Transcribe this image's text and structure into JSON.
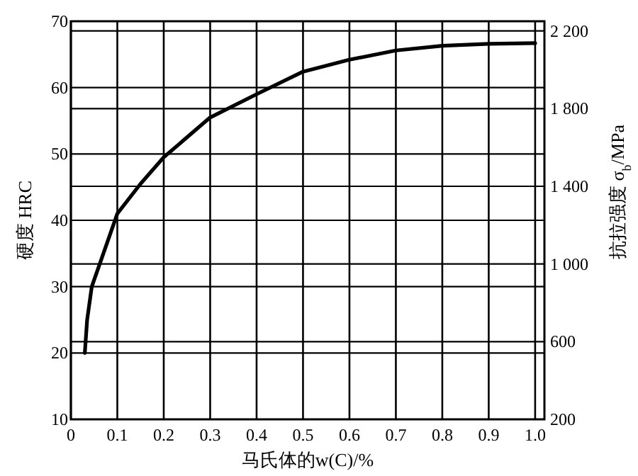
{
  "chart_data": {
    "type": "line",
    "xlabel": "马氏体的w(C)/%",
    "ylabel": "硬度 HRC",
    "y2label": "抗拉强度 σ$_{b}$/MPa",
    "x": [
      0.03,
      0.035,
      0.045,
      0.07,
      0.1,
      0.15,
      0.2,
      0.3,
      0.4,
      0.5,
      0.6,
      0.7,
      0.8,
      0.9,
      1.0
    ],
    "series": [
      {
        "color": "#000000",
        "values": [
          20,
          25,
          30,
          35,
          41,
          45.5,
          49.5,
          55.5,
          59,
          62.4,
          64.2,
          65.6,
          66.3,
          66.6,
          66.7
        ]
      }
    ],
    "xlim": [
      0,
      1.02
    ],
    "xticks": [
      0,
      0.1,
      0.2,
      0.3,
      0.4,
      0.5,
      0.6,
      0.7,
      0.8,
      0.9,
      {
        "value": 1.0,
        "label": "1.0"
      }
    ],
    "ylim": [
      10,
      70
    ],
    "yticks": [
      10,
      20,
      30,
      40,
      50,
      60,
      70
    ],
    "y2lim": [
      200,
      2250
    ],
    "y2ticks": [
      200,
      600,
      {
        "value": 1000,
        "label": "1 000"
      },
      {
        "value": 1400,
        "label": "1 400"
      },
      {
        "value": 1800,
        "label": "1 800"
      },
      {
        "value": 2200,
        "label": "2 200"
      }
    ],
    "grid": true,
    "marker": "none",
    "line_style": "solid"
  }
}
